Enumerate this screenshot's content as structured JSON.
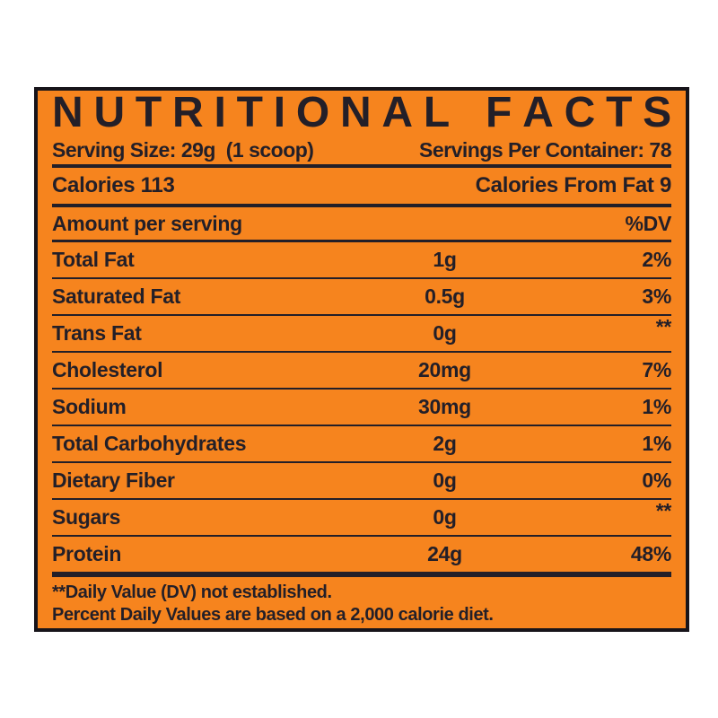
{
  "label": {
    "title": "NUTRITIONAL FACTS",
    "serving_size": "Serving Size: 29g  (1 scoop)",
    "servings_per_container": "Servings Per Container: 78",
    "calories": "Calories 113",
    "calories_from_fat": "Calories From Fat 9",
    "amount_header": "Amount per serving",
    "dv_header": "%DV",
    "rows": [
      {
        "name": "Total Fat",
        "amount": "1g",
        "dv": "2%"
      },
      {
        "name": "Saturated Fat",
        "amount": "0.5g",
        "dv": "3%"
      },
      {
        "name": "Trans Fat",
        "amount": "0g",
        "dv": "**"
      },
      {
        "name": "Cholesterol",
        "amount": "20mg",
        "dv": "7%"
      },
      {
        "name": "Sodium",
        "amount": "30mg",
        "dv": "1%"
      },
      {
        "name": "Total Carbohydrates",
        "amount": "2g",
        "dv": "1%"
      },
      {
        "name": "Dietary Fiber",
        "amount": "0g",
        "dv": "0%"
      },
      {
        "name": "Sugars",
        "amount": "0g",
        "dv": "**"
      },
      {
        "name": "Protein",
        "amount": "24g",
        "dv": "48%"
      }
    ],
    "footnotes": [
      "**Daily Value (DV) not established.",
      "Percent Daily Values are based on a 2,000 calorie diet."
    ],
    "colors": {
      "background": "#F6841E",
      "ink": "#231F28"
    }
  }
}
